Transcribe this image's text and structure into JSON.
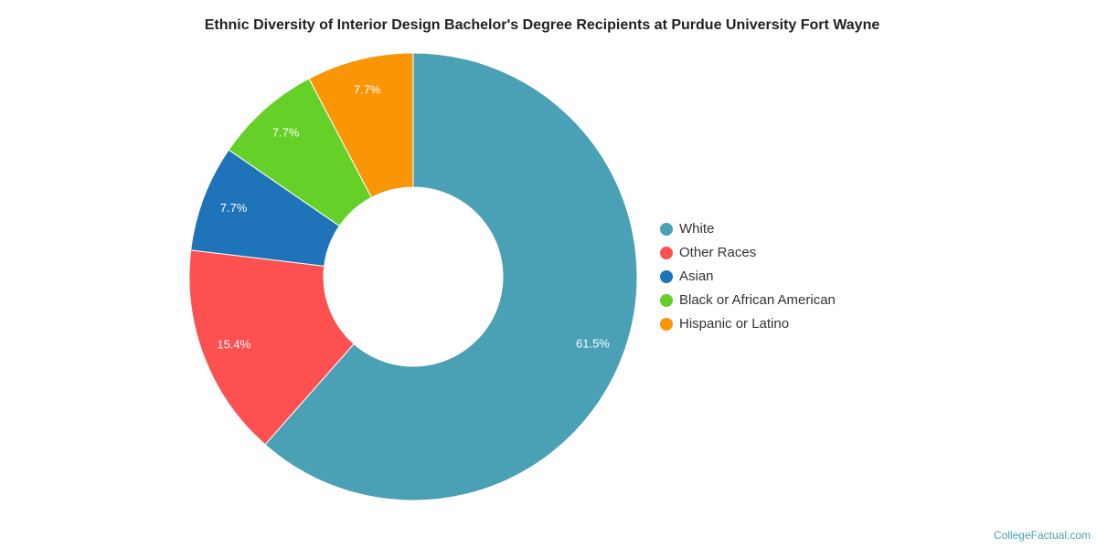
{
  "chart_data": {
    "type": "donut",
    "title": "Ethnic Diversity of Interior Design Bachelor's Degree Recipients at Purdue University Fort Wayne",
    "categories": [
      "White",
      "Other Races",
      "Asian",
      "Black or African American",
      "Hispanic or Latino"
    ],
    "values": [
      61.5,
      15.4,
      7.7,
      7.7,
      7.7
    ],
    "value_labels": [
      "61.5%",
      "15.4%",
      "7.7%",
      "7.7%",
      "7.7%"
    ],
    "colors": [
      "#4aa0b5",
      "#fc5150",
      "#1f74b9",
      "#65d027",
      "#fa9505"
    ],
    "legend": "right",
    "source": "CollegeFactual.com"
  }
}
